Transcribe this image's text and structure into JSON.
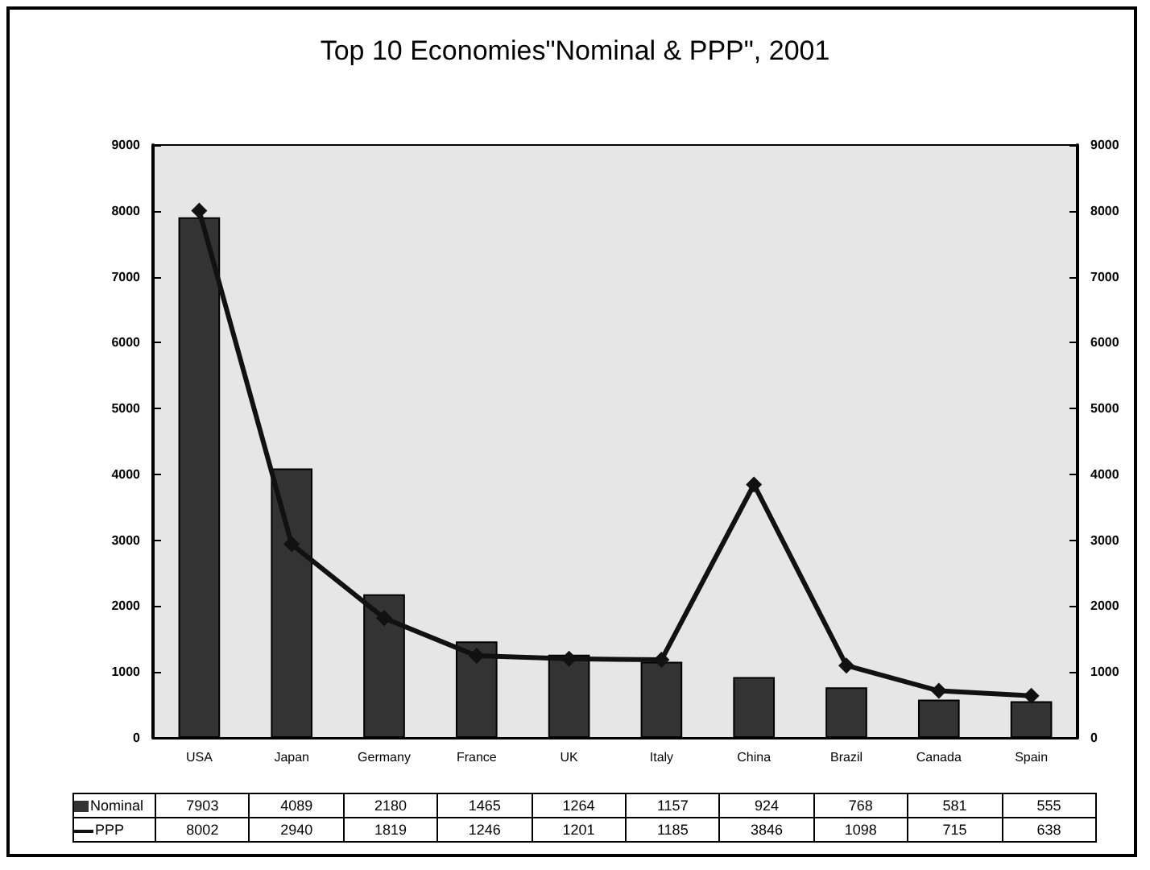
{
  "chart_data": {
    "type": "bar",
    "title": "Top 10 Economies\"Nominal & PPP\", 2001",
    "categories": [
      "USA",
      "Japan",
      "Germany",
      "France",
      "UK",
      "Italy",
      "China",
      "Brazil",
      "Canada",
      "Spain"
    ],
    "series": [
      {
        "name": "Nominal",
        "color": "#333333",
        "values": [
          7903,
          4089,
          2180,
          1465,
          1264,
          1157,
          924,
          768,
          581,
          555
        ]
      },
      {
        "name": "PPP",
        "type": "line",
        "color": "#111111",
        "values": [
          8002,
          2940,
          1819,
          1246,
          1201,
          1185,
          3846,
          1098,
          715,
          638
        ]
      }
    ],
    "ylim": [
      0,
      9000
    ],
    "yticks": [
      0,
      1000,
      2000,
      3000,
      4000,
      5000,
      6000,
      7000,
      8000,
      9000
    ],
    "y2lim": [
      0,
      9000
    ],
    "y2ticks": [
      0,
      1000,
      2000,
      3000,
      4000,
      5000,
      6000,
      7000,
      8000,
      9000
    ],
    "data_labels": true,
    "legend": "bottom",
    "marker": "diamond",
    "line_style": "solid",
    "grid": false
  }
}
